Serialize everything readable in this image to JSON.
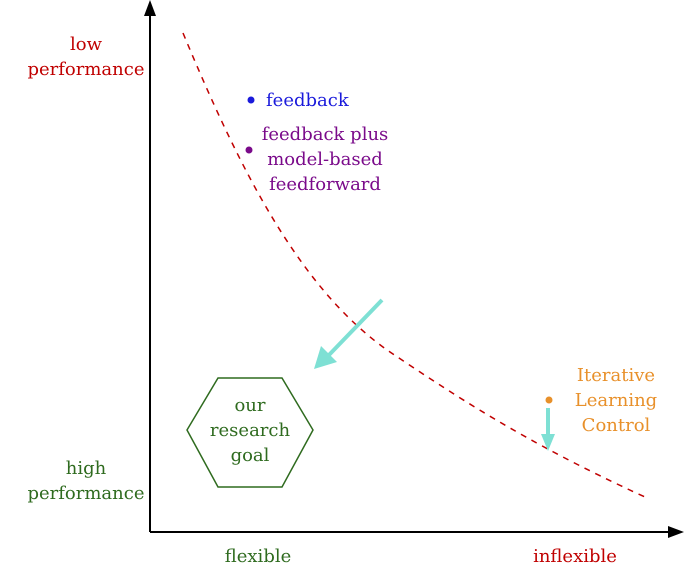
{
  "colors": {
    "axis": "#000000",
    "red": "#c00000",
    "green": "#2f6b1f",
    "blue": "#1a1adb",
    "purple": "#7a0a8a",
    "orange": "#e8902a",
    "cyan": "#7ee0d4"
  },
  "axes": {
    "y_top_label": [
      "low",
      "performance"
    ],
    "y_bottom_label": [
      "high",
      "performance"
    ],
    "x_left_label": "flexible",
    "x_right_label": "inflexible"
  },
  "points": {
    "feedback": {
      "label": [
        "feedback"
      ]
    },
    "feedforward": {
      "label": [
        "feedback plus",
        "model-based",
        "feedforward"
      ]
    },
    "ilc": {
      "label": [
        "Iterative",
        "Learning",
        "Control"
      ]
    }
  },
  "goal": {
    "label": [
      "our",
      "research",
      "goal"
    ]
  }
}
